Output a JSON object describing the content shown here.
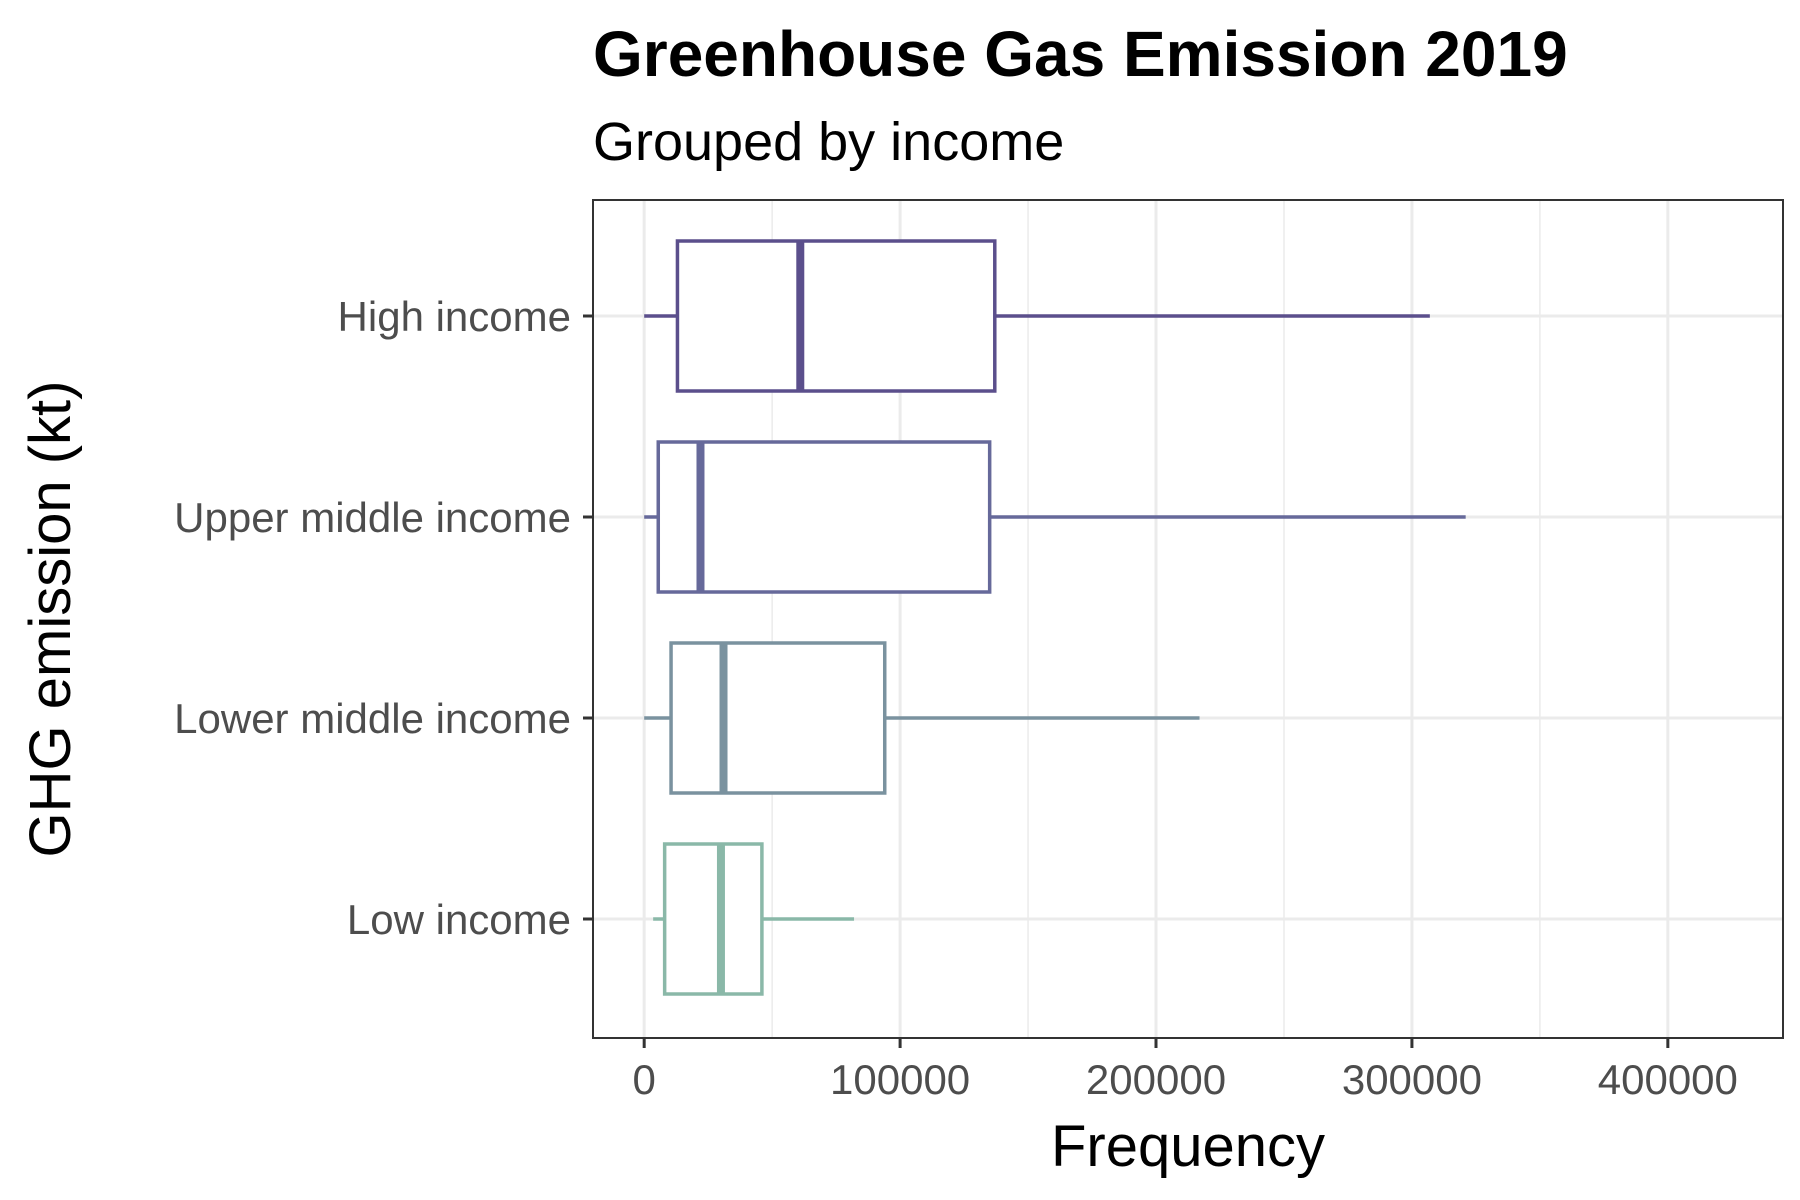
{
  "chart_data": {
    "type": "boxplot",
    "title": "Greenhouse Gas Emission 2019",
    "subtitle": "Grouped by income",
    "xlabel": "Frequency",
    "ylabel": "GHG emission (kt)",
    "xlim": [
      -20000,
      445000
    ],
    "x_ticks": [
      0,
      100000,
      200000,
      300000,
      400000
    ],
    "x_tick_labels": [
      "0",
      "100000",
      "200000",
      "300000",
      "400000"
    ],
    "grid": true,
    "orientation": "horizontal",
    "categories": [
      "High income",
      "Upper middle income",
      "Lower middle income",
      "Low income"
    ],
    "boxes": [
      {
        "category": "High income",
        "min": 0,
        "q1": 13000,
        "median": 61000,
        "q3": 137000,
        "max": 307000,
        "color": "#5b4f8c"
      },
      {
        "category": "Upper middle income",
        "min": 0,
        "q1": 5500,
        "median": 22000,
        "q3": 135000,
        "max": 321000,
        "color": "#66699a"
      },
      {
        "category": "Lower middle income",
        "min": 0,
        "q1": 10500,
        "median": 31000,
        "q3": 94000,
        "max": 217000,
        "color": "#7a929f"
      },
      {
        "category": "Low income",
        "min": 3500,
        "q1": 8000,
        "median": 30000,
        "q3": 46000,
        "max": 82000,
        "color": "#8ab8a8"
      }
    ]
  }
}
